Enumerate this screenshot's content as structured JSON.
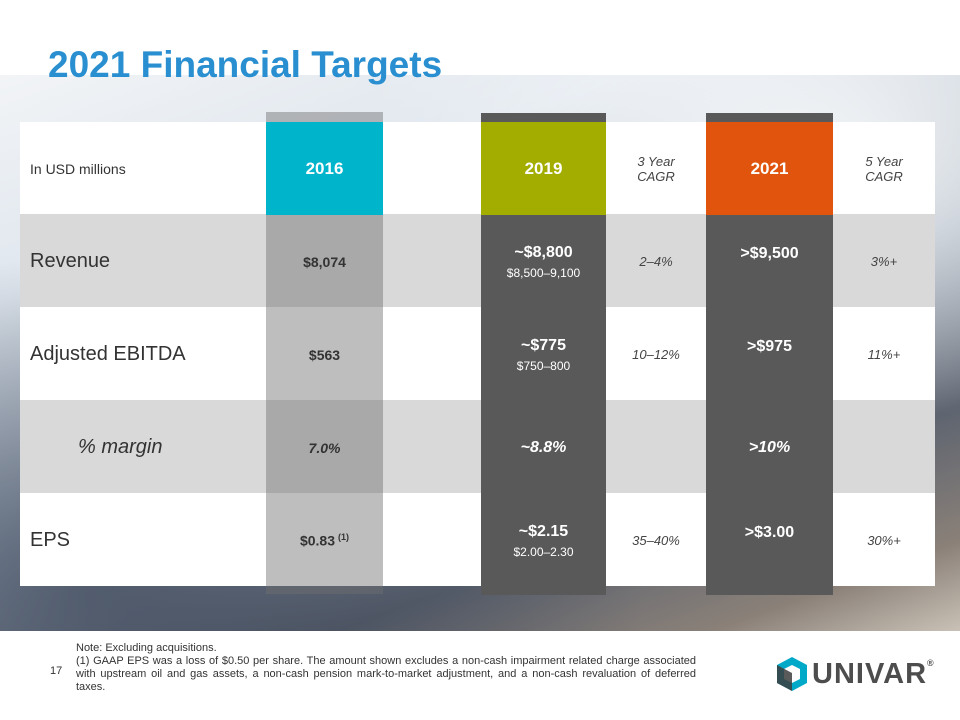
{
  "header": {
    "title": "2021 Financial Targets"
  },
  "table": {
    "columns": {
      "label": "In USD millions",
      "y2016": "2016",
      "y2019": "2019",
      "cagr3": "3 Year CAGR",
      "y2021": "2021",
      "cagr5": "5 Year CAGR"
    },
    "rows": [
      {
        "label": "Revenue",
        "y2016": "$8,074",
        "y2019": "~$8,800",
        "y2019_range": "$8,500–9,100",
        "cagr3": "2–4%",
        "y2021": ">$9,500",
        "cagr5": "3%+"
      },
      {
        "label": "Adjusted EBITDA",
        "y2016": "$563",
        "y2019": "~$775",
        "y2019_range": "$750–800",
        "cagr3": "10–12%",
        "y2021": ">$975",
        "cagr5": "11%+"
      },
      {
        "label": "% margin",
        "y2016": "7.0%",
        "y2019": "~8.8%",
        "y2021": ">10%"
      },
      {
        "label": "EPS",
        "y2016": "$0.83",
        "y2016_note": "(1)",
        "y2019": "~$2.15",
        "y2019_range": "$2.00–2.30",
        "cagr3": "35–40%",
        "y2021": ">$3.00",
        "cagr5": "30%+"
      }
    ]
  },
  "footer": {
    "page": "17",
    "notes": [
      "Note: Excluding acquisitions.",
      "(1) GAAP EPS was a loss of $0.50 per share. The amount shown excludes a non-cash impairment related charge associated with upstream oil and gas assets, a non-cash pension mark-to-market adjustment, and a non-cash revaluation of deferred taxes."
    ],
    "logo": "UNIVAR"
  }
}
